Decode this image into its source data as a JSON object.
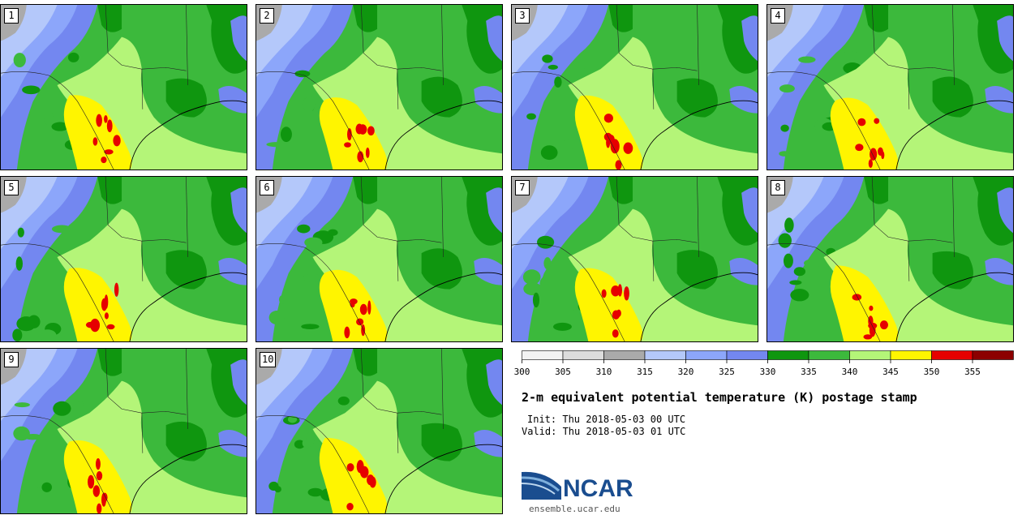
{
  "panels": [
    {
      "label": "1"
    },
    {
      "label": "2"
    },
    {
      "label": "3"
    },
    {
      "label": "4"
    },
    {
      "label": "5"
    },
    {
      "label": "6"
    },
    {
      "label": "7"
    },
    {
      "label": "8"
    },
    {
      "label": "9"
    },
    {
      "label": "10"
    }
  ],
  "chart_data": {
    "type": "heatmap",
    "title": "2-m equivalent potential temperature (K) postage stamp",
    "init": "Init: Thu 2018-05-03 00 UTC",
    "valid": "Valid: Thu 2018-05-03 01 UTC",
    "colorbar_ticks": [
      "300",
      "305",
      "310",
      "315",
      "320",
      "325",
      "330",
      "335",
      "340",
      "345",
      "350",
      "355"
    ],
    "levels": [
      300,
      305,
      310,
      315,
      320,
      325,
      330,
      335,
      340,
      345,
      350,
      355,
      360
    ],
    "colors": [
      "#f2f2f2",
      "#dcdcdc",
      "#aaaaaa",
      "#b4c8fa",
      "#8ca6fa",
      "#7387f0",
      "#0f960f",
      "#3cb93c",
      "#b4f578",
      "#fff500",
      "#e60000",
      "#8c0000"
    ],
    "members": 10
  },
  "branding": {
    "logo_text": "NCAR",
    "site": "ensemble.ucar.edu"
  }
}
